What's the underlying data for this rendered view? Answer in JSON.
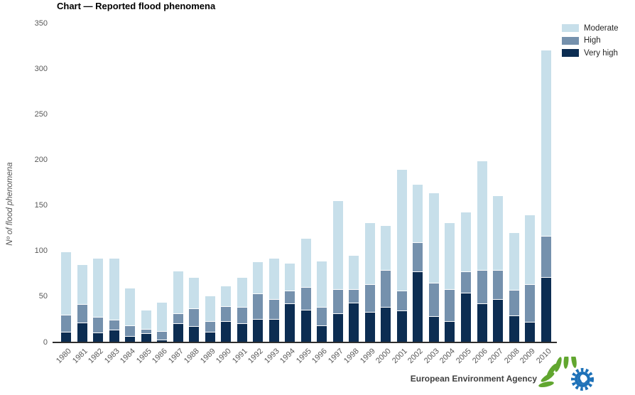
{
  "title": "Chart — Reported flood phenomena",
  "y_axis": {
    "label": "Nº of flood phenomena",
    "ticks": [
      0,
      50,
      100,
      150,
      200,
      250,
      300,
      350
    ]
  },
  "legend": [
    {
      "label": "Moderate",
      "color": "#c7dfea"
    },
    {
      "label": "High",
      "color": "#7591ad"
    },
    {
      "label": "Very high",
      "color": "#0c2d52"
    }
  ],
  "footer": {
    "brand": "European Environment Agency"
  },
  "colors": {
    "moderate": "#c7dfea",
    "high": "#7591ad",
    "very_high": "#0c2d52",
    "axis_text": "#595959",
    "axis_line": "#2e2e2e",
    "logo_green": "#61a62f",
    "logo_blue": "#1d71b8"
  },
  "chart_data": {
    "type": "bar",
    "stacked": true,
    "title": "Chart — Reported flood phenomena",
    "xlabel": "",
    "ylabel": "Nº of flood phenomena",
    "ylim": [
      0,
      350
    ],
    "grid": false,
    "legend_position": "top-right",
    "categories": [
      1980,
      1981,
      1982,
      1983,
      1984,
      1985,
      1986,
      1987,
      1988,
      1989,
      1990,
      1991,
      1992,
      1993,
      1994,
      1995,
      1996,
      1997,
      1998,
      1999,
      2000,
      2001,
      2002,
      2003,
      2004,
      2005,
      2006,
      2007,
      2008,
      2009,
      2010
    ],
    "series": [
      {
        "name": "Very high",
        "color": "#0c2d52",
        "values": [
          11,
          21,
          10,
          13,
          6,
          9,
          2,
          20,
          17,
          11,
          23,
          20,
          25,
          25,
          42,
          35,
          18,
          31,
          43,
          33,
          38,
          34,
          77,
          28,
          23,
          54,
          42,
          47,
          29,
          22,
          71
        ]
      },
      {
        "name": "High",
        "color": "#7591ad",
        "values": [
          19,
          20,
          17,
          11,
          12,
          5,
          10,
          11,
          20,
          12,
          16,
          18,
          28,
          22,
          14,
          25,
          20,
          27,
          15,
          30,
          41,
          22,
          32,
          37,
          35,
          23,
          37,
          32,
          28,
          41,
          45
        ]
      },
      {
        "name": "Moderate",
        "color": "#c7dfea",
        "values": [
          69,
          44,
          65,
          68,
          41,
          21,
          32,
          47,
          34,
          28,
          23,
          33,
          35,
          45,
          31,
          54,
          51,
          97,
          37,
          68,
          49,
          134,
          64,
          99,
          73,
          66,
          120,
          82,
          63,
          77,
          205
        ]
      }
    ],
    "totals": [
      99,
      85,
      92,
      92,
      59,
      35,
      44,
      78,
      71,
      51,
      62,
      71,
      88,
      92,
      87,
      114,
      89,
      155,
      95,
      131,
      128,
      190,
      173,
      164,
      131,
      143,
      199,
      161,
      120,
      140,
      321
    ]
  }
}
